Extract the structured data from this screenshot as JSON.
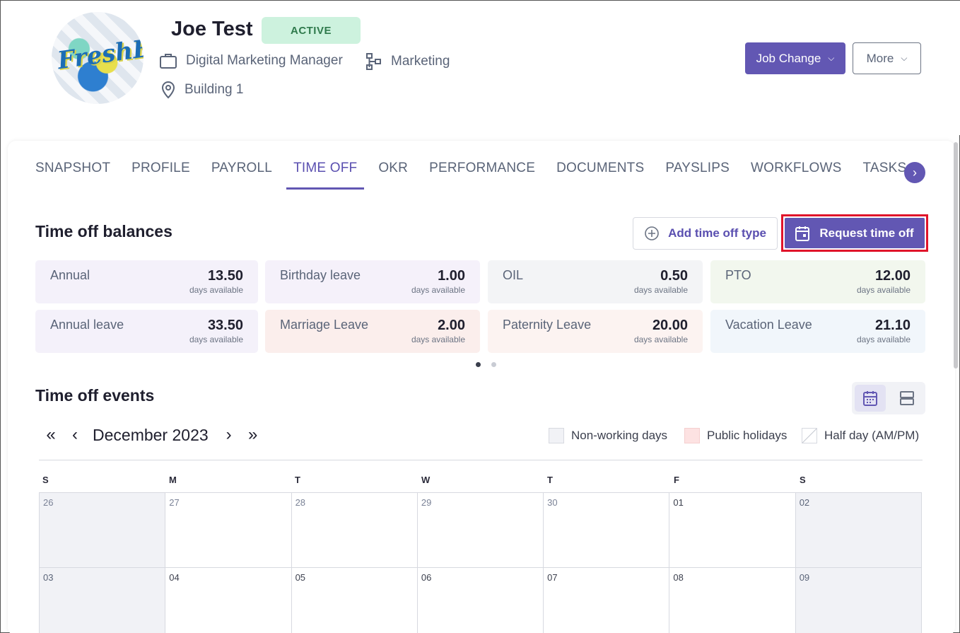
{
  "employee": {
    "name": "Joe Test",
    "status": "ACTIVE",
    "job_title": "Digital Marketing Manager",
    "department": "Marketing",
    "location": "Building 1",
    "avatar_text": "FreshB"
  },
  "header_actions": {
    "job_change_label": "Job Change",
    "more_label": "More"
  },
  "tabs": [
    {
      "label": "SNAPSHOT"
    },
    {
      "label": "PROFILE"
    },
    {
      "label": "PAYROLL"
    },
    {
      "label": "TIME OFF"
    },
    {
      "label": "OKR"
    },
    {
      "label": "PERFORMANCE"
    },
    {
      "label": "DOCUMENTS"
    },
    {
      "label": "PAYSLIPS"
    },
    {
      "label": "WORKFLOWS"
    },
    {
      "label": "TASKS"
    }
  ],
  "active_tab": "TIME OFF",
  "balances_section": {
    "title": "Time off balances",
    "add_type_label": "Add time off type",
    "request_label": "Request time off",
    "unit_label": "days available",
    "items": [
      {
        "name": "Annual",
        "value": "13.50",
        "color": "#f4f1fa"
      },
      {
        "name": "Birthday leave",
        "value": "1.00",
        "color": "#f5f1fa"
      },
      {
        "name": "OIL",
        "value": "0.50",
        "color": "#f3f4f6"
      },
      {
        "name": "PTO",
        "value": "12.00",
        "color": "#f2f7ee"
      },
      {
        "name": "Annual leave",
        "value": "33.50",
        "color": "#f4f1fa"
      },
      {
        "name": "Marriage Leave",
        "value": "2.00",
        "color": "#fbeeec"
      },
      {
        "name": "Paternity Leave",
        "value": "20.00",
        "color": "#fcf3f1"
      },
      {
        "name": "Vacation Leave",
        "value": "21.10",
        "color": "#f1f6fb"
      }
    ]
  },
  "events_section": {
    "title": "Time off events",
    "month": "December 2023",
    "nav_icons": {
      "prev_year": "«",
      "prev": "‹",
      "next": "›",
      "next_year": "»"
    },
    "legend": [
      {
        "label": "Non-working days",
        "color": "#f1f2f6"
      },
      {
        "label": "Public holidays",
        "color": "#fde2e2"
      },
      {
        "label": "Half day (AM/PM)",
        "color": "#ffffff"
      }
    ],
    "weekdays": [
      "S",
      "M",
      "T",
      "W",
      "T",
      "F",
      "S"
    ],
    "weeks": [
      [
        "26",
        "27",
        "28",
        "29",
        "30",
        "01",
        "02"
      ],
      [
        "03",
        "04",
        "05",
        "06",
        "07",
        "08",
        "09"
      ]
    ]
  },
  "colors": {
    "accent": "#6257b3",
    "active_badge_bg": "#cdf2de",
    "highlight": "#e0142a"
  }
}
